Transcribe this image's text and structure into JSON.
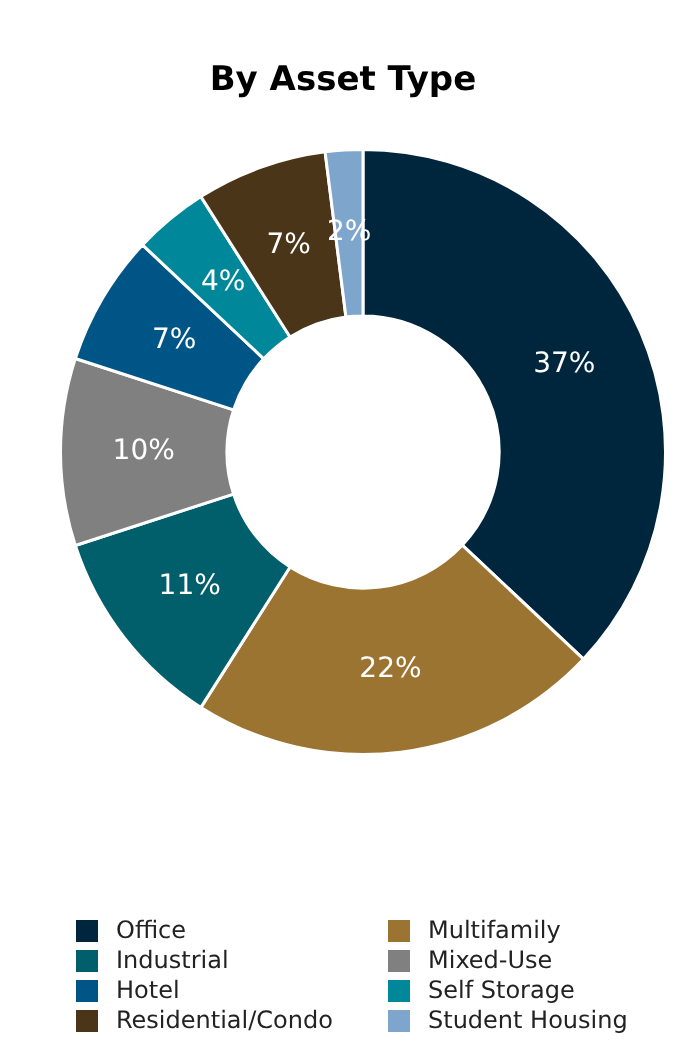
{
  "chart_data": {
    "type": "donut",
    "title": "By Asset Type",
    "categories": [
      "Office",
      "Multifamily",
      "Industrial",
      "Mixed-Use",
      "Hotel",
      "Self Storage",
      "Residential/Condo",
      "Student Housing"
    ],
    "values": [
      37,
      22,
      11,
      10,
      7,
      4,
      7,
      2
    ],
    "colors": [
      "#00263e",
      "#9b7431",
      "#005f6b",
      "#808080",
      "#005587",
      "#00889a",
      "#4b3519",
      "#7ea6cd"
    ],
    "value_labels": [
      "37%",
      "22%",
      "11%",
      "10%",
      "7%",
      "4%",
      "7%",
      "2%"
    ],
    "legend": "bottom"
  }
}
